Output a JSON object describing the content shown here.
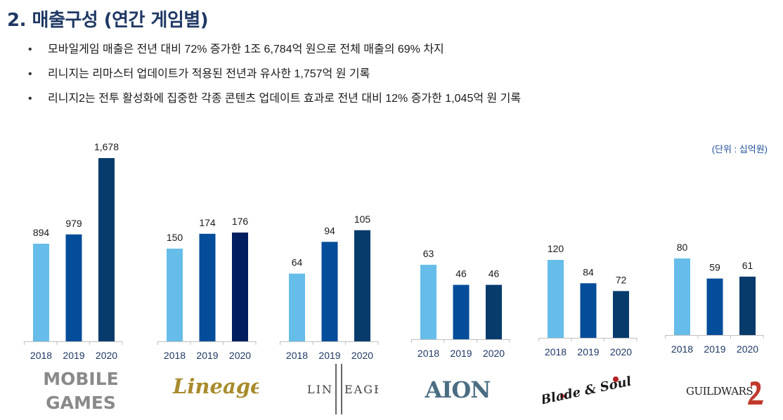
{
  "title": "2. 매출구성 (연간 게임별)",
  "bullets": [
    "모바일게임 매출은 전년 대비 72% 증가한 1조 6,784억 원으로 전체 매출의 69% 차지",
    "리니지는 리마스터 업데이트가 적용된 전년과 유사한 1,757억 원 기록",
    "리니지2는 전투 활성화에 집중한 각종 콘텐츠 업데이트 효과로 전년 대비 12% 증가한 1,045억 원 기록"
  ],
  "unit": "(단위 : 십억원)",
  "colors": {
    "y2018": "#66bde9",
    "y2019": "#044d9a",
    "y2020": "#063b6c",
    "y2020b": "#031e5e",
    "title": "#1f3864"
  },
  "logos": {
    "mobile_line1": "MOBILE",
    "mobile_line2": "GAMES",
    "lineage": "Lineage",
    "lineage2_left": "LIN",
    "lineage2_right": "EAGE",
    "aion": "AION",
    "bns": "Blade & Soul",
    "gw": "GUILDWARS"
  },
  "chart_data": [
    {
      "type": "bar",
      "group": "MOBILE GAMES",
      "categories": [
        "2018",
        "2019",
        "2020"
      ],
      "values": [
        894,
        979,
        1678
      ],
      "value_labels": [
        "894",
        "979",
        "1,678"
      ]
    },
    {
      "type": "bar",
      "group": "Lineage",
      "categories": [
        "2018",
        "2019",
        "2020"
      ],
      "values": [
        150,
        174,
        176
      ],
      "value_labels": [
        "150",
        "174",
        "176"
      ]
    },
    {
      "type": "bar",
      "group": "Lineage II",
      "categories": [
        "2018",
        "2019",
        "2020"
      ],
      "values": [
        64,
        94,
        105
      ],
      "value_labels": [
        "64",
        "94",
        "105"
      ]
    },
    {
      "type": "bar",
      "group": "AION",
      "categories": [
        "2018",
        "2019",
        "2020"
      ],
      "values": [
        63,
        46,
        46
      ],
      "value_labels": [
        "63",
        "46",
        "46"
      ]
    },
    {
      "type": "bar",
      "group": "Blade & Soul",
      "categories": [
        "2018",
        "2019",
        "2020"
      ],
      "values": [
        120,
        84,
        72
      ],
      "value_labels": [
        "120",
        "84",
        "72"
      ]
    },
    {
      "type": "bar",
      "group": "Guild Wars 2",
      "categories": [
        "2018",
        "2019",
        "2020"
      ],
      "values": [
        80,
        59,
        61
      ],
      "value_labels": [
        "80",
        "59",
        "61"
      ]
    }
  ]
}
